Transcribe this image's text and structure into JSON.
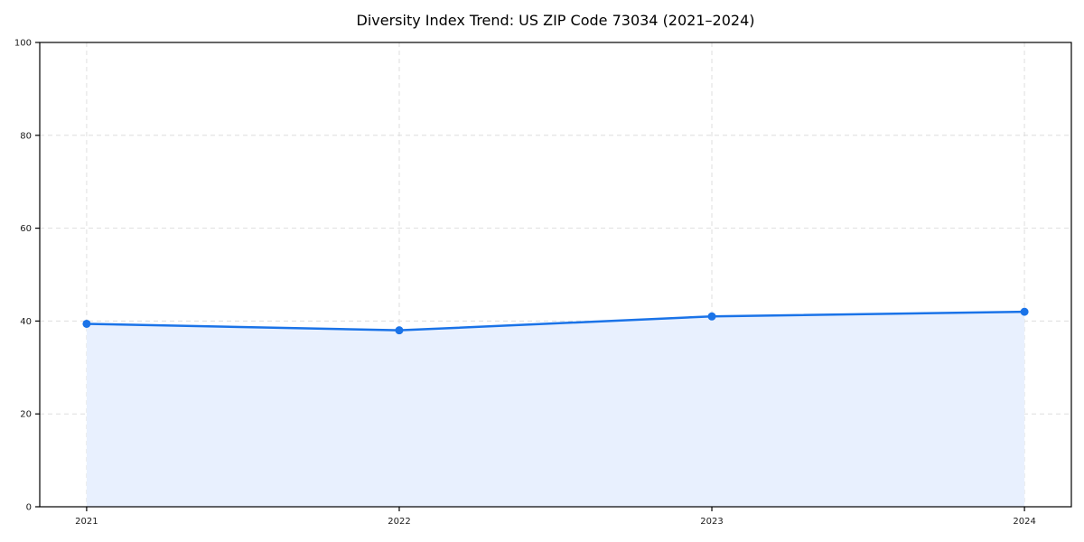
{
  "chart_data": {
    "type": "area",
    "title": "Diversity Index Trend: US ZIP Code 73034 (2021–2024)",
    "x": [
      2021,
      2022,
      2023,
      2024
    ],
    "xtick_labels": [
      "2021",
      "2022",
      "2023",
      "2024"
    ],
    "series": [
      {
        "name": "Diversity Index",
        "values": [
          39.4,
          38.0,
          41.0,
          42.0
        ]
      }
    ],
    "xlabel": "",
    "ylabel": "",
    "ylim": [
      0,
      100
    ],
    "yticks": [
      0,
      20,
      40,
      60,
      80,
      100
    ],
    "ytick_labels": [
      "0",
      "20",
      "40",
      "60",
      "80",
      "100"
    ],
    "grid": true,
    "grid_style": "dashed",
    "legend": "none",
    "marker": "circle",
    "colors": {
      "line": "#1a73e8",
      "marker": "#1a73e8",
      "fill": "#e8f0fe",
      "grid": "#dedede",
      "spine": "#000000",
      "tick_label": "#1a1a1a",
      "title": "#000000",
      "background": "#ffffff"
    }
  }
}
